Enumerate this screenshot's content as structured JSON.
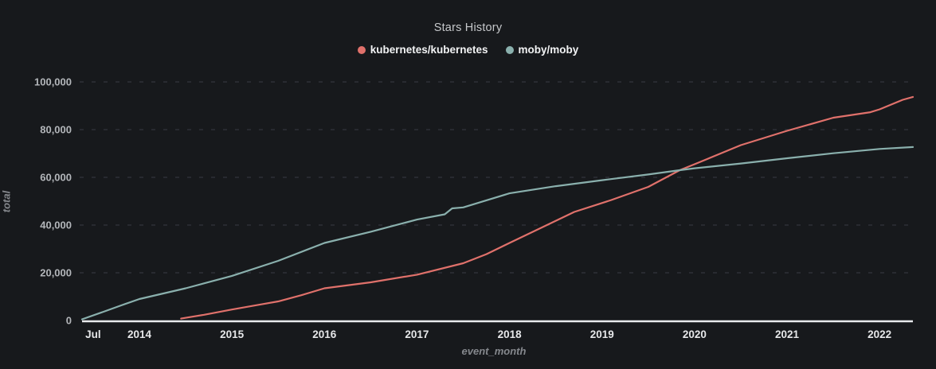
{
  "title": "Stars History",
  "legend": [
    {
      "label": "kubernetes/kubernetes",
      "color": "#e0716b"
    },
    {
      "label": "moby/moby",
      "color": "#8ab0ad"
    }
  ],
  "colors": {
    "background": "#17191c",
    "title_text": "#c6c8cb",
    "legend_text": "#f2f3f4",
    "y_tick_text": "#b3b6ba",
    "x_tick_text": "#e6e7e9",
    "axis_title_text": "#85888d",
    "gridline": "#2e3136",
    "axis_line": "#e8eaec",
    "series_kubernetes": "#e0716b",
    "series_moby": "#8ab0ad"
  },
  "chart_data": {
    "type": "line",
    "title": "Stars History",
    "xlabel": "event_month",
    "ylabel": "total",
    "xlim": [
      2013.38,
      2022.36
    ],
    "ylim": [
      0,
      100000
    ],
    "grid": "horizontal-dashed",
    "legend_position": "top-center",
    "x_ticks": [
      {
        "label": "Jul",
        "t": 2013.5
      },
      {
        "label": "2014",
        "t": 2014
      },
      {
        "label": "2015",
        "t": 2015
      },
      {
        "label": "2016",
        "t": 2016
      },
      {
        "label": "2017",
        "t": 2017
      },
      {
        "label": "2018",
        "t": 2018
      },
      {
        "label": "2019",
        "t": 2019
      },
      {
        "label": "2020",
        "t": 2020
      },
      {
        "label": "2021",
        "t": 2021
      },
      {
        "label": "2022",
        "t": 2022
      }
    ],
    "y_ticks": [
      {
        "label": "0",
        "v": 0
      },
      {
        "label": "20,000",
        "v": 20000
      },
      {
        "label": "40,000",
        "v": 40000
      },
      {
        "label": "60,000",
        "v": 60000
      },
      {
        "label": "80,000",
        "v": 80000
      },
      {
        "label": "100,000",
        "v": 100000
      }
    ],
    "series": [
      {
        "name": "kubernetes/kubernetes",
        "color": "#e0716b",
        "points": [
          [
            2014.45,
            800
          ],
          [
            2014.7,
            2400
          ],
          [
            2015.0,
            4600
          ],
          [
            2015.25,
            6300
          ],
          [
            2015.5,
            8000
          ],
          [
            2015.75,
            10600
          ],
          [
            2016.0,
            13500
          ],
          [
            2016.5,
            16000
          ],
          [
            2017.0,
            19200
          ],
          [
            2017.5,
            24000
          ],
          [
            2017.75,
            27800
          ],
          [
            2018.0,
            32500
          ],
          [
            2018.35,
            39000
          ],
          [
            2018.7,
            45500
          ],
          [
            2019.1,
            50500
          ],
          [
            2019.5,
            56000
          ],
          [
            2019.84,
            63000
          ],
          [
            2020.0,
            65500
          ],
          [
            2020.5,
            73500
          ],
          [
            2021.0,
            79500
          ],
          [
            2021.5,
            85000
          ],
          [
            2021.9,
            87300
          ],
          [
            2022.0,
            88500
          ],
          [
            2022.25,
            92500
          ],
          [
            2022.36,
            93700
          ]
        ]
      },
      {
        "name": "moby/moby",
        "color": "#8ab0ad",
        "points": [
          [
            2013.38,
            500
          ],
          [
            2013.6,
            3500
          ],
          [
            2013.8,
            6300
          ],
          [
            2014.0,
            9000
          ],
          [
            2014.5,
            13500
          ],
          [
            2015.0,
            18700
          ],
          [
            2015.5,
            25000
          ],
          [
            2016.0,
            32500
          ],
          [
            2016.5,
            37200
          ],
          [
            2017.0,
            42300
          ],
          [
            2017.3,
            44500
          ],
          [
            2017.38,
            47000
          ],
          [
            2017.5,
            47400
          ],
          [
            2018.0,
            53300
          ],
          [
            2018.5,
            56300
          ],
          [
            2019.0,
            58800
          ],
          [
            2019.5,
            61200
          ],
          [
            2019.84,
            63000
          ],
          [
            2020.0,
            63800
          ],
          [
            2020.5,
            65800
          ],
          [
            2021.0,
            68000
          ],
          [
            2021.5,
            70100
          ],
          [
            2022.0,
            71900
          ],
          [
            2022.36,
            72700
          ]
        ]
      }
    ]
  }
}
